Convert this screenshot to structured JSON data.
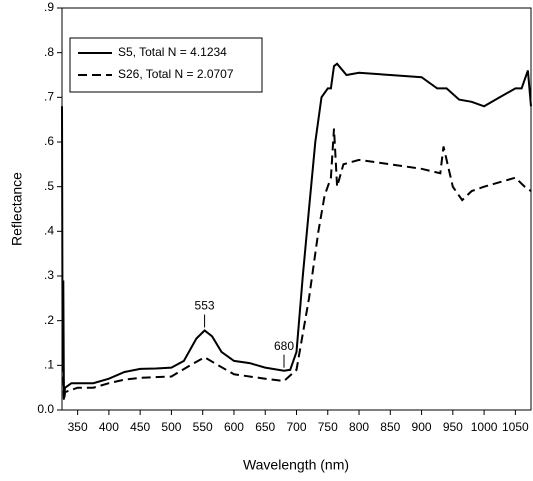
{
  "chart_data": {
    "type": "line",
    "x_label": "Wavelength (nm)",
    "y_label": "Reflectance",
    "xlim": [
      325,
      1075
    ],
    "ylim": [
      0,
      0.9
    ],
    "xticks": [
      350,
      400,
      450,
      500,
      550,
      600,
      650,
      700,
      750,
      800,
      850,
      900,
      950,
      1000,
      1050
    ],
    "yticks": [
      {
        "value": 0,
        "label": "0.0"
      },
      {
        "value": 0.1,
        "label": ".1"
      },
      {
        "value": 0.2,
        "label": ".2"
      },
      {
        "value": 0.3,
        "label": ".3"
      },
      {
        "value": 0.4,
        "label": ".4"
      },
      {
        "value": 0.5,
        "label": ".5"
      },
      {
        "value": 0.6,
        "label": ".6"
      },
      {
        "value": 0.7,
        "label": ".7"
      },
      {
        "value": 0.8,
        "label": ".8"
      },
      {
        "value": 0.9,
        "label": ".9"
      }
    ],
    "legend": "upper left",
    "series": [
      {
        "name": "S5, Total N = 4.1234",
        "color": "#000000",
        "dash": "solid",
        "x": [
          325,
          326,
          327,
          328,
          330,
          340,
          350,
          375,
          400,
          425,
          450,
          475,
          500,
          520,
          540,
          553,
          565,
          580,
          600,
          625,
          650,
          680,
          690,
          700,
          710,
          720,
          730,
          740,
          750,
          755,
          760,
          765,
          780,
          800,
          850,
          900,
          925,
          940,
          960,
          980,
          1000,
          1025,
          1050,
          1060,
          1070,
          1075
        ],
        "values": [
          0.68,
          0.1,
          0.29,
          0.03,
          0.05,
          0.06,
          0.06,
          0.06,
          0.07,
          0.085,
          0.092,
          0.093,
          0.095,
          0.11,
          0.16,
          0.178,
          0.165,
          0.13,
          0.11,
          0.105,
          0.095,
          0.088,
          0.09,
          0.13,
          0.3,
          0.45,
          0.6,
          0.7,
          0.72,
          0.72,
          0.77,
          0.775,
          0.75,
          0.755,
          0.75,
          0.745,
          0.72,
          0.72,
          0.695,
          0.69,
          0.68,
          0.7,
          0.72,
          0.72,
          0.76,
          0.68
        ]
      },
      {
        "name": "S26, Total N = 2.0707",
        "color": "#000000",
        "dash": "dashed",
        "x": [
          326,
          328,
          330,
          350,
          375,
          400,
          425,
          450,
          500,
          530,
          553,
          575,
          600,
          650,
          680,
          700,
          720,
          735,
          745,
          755,
          760,
          765,
          775,
          800,
          850,
          900,
          930,
          935,
          950,
          965,
          980,
          1000,
          1025,
          1050,
          1065,
          1075
        ],
        "values": [
          0.2,
          0.02,
          0.04,
          0.05,
          0.05,
          0.06,
          0.068,
          0.072,
          0.075,
          0.1,
          0.118,
          0.1,
          0.08,
          0.07,
          0.065,
          0.09,
          0.25,
          0.4,
          0.48,
          0.52,
          0.63,
          0.5,
          0.55,
          0.56,
          0.55,
          0.54,
          0.53,
          0.59,
          0.5,
          0.47,
          0.49,
          0.5,
          0.51,
          0.52,
          0.5,
          0.49
        ]
      }
    ],
    "annotations": [
      {
        "label": "553",
        "x": 553,
        "y": 0.178
      },
      {
        "label": "680",
        "x": 680,
        "y": 0.088
      }
    ]
  }
}
